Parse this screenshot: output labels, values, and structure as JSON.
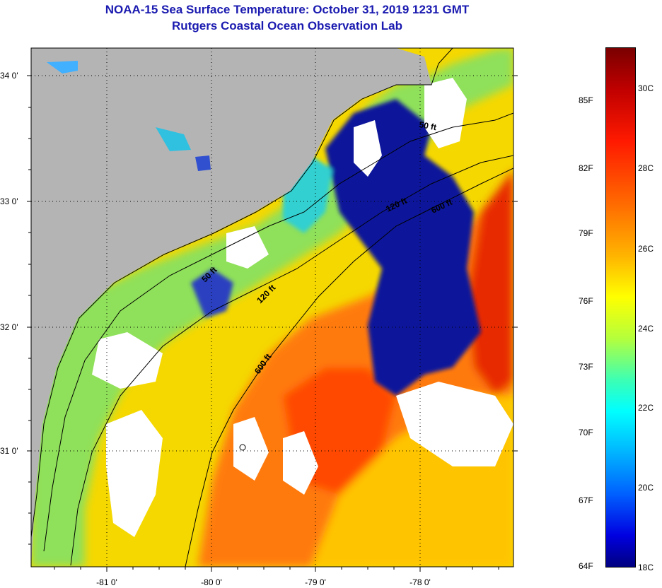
{
  "header": {
    "title": "NOAA-15 Sea Surface Temperature:  October 31, 2019 1231 GMT",
    "subtitle": "Rutgers Coastal Ocean Observation Lab"
  },
  "map": {
    "lat_ticks": [
      "34 0'",
      "33 0'",
      "32 0'",
      "31 0'"
    ],
    "lon_ticks": [
      "-81 0'",
      "-80 0'",
      "-79 0'",
      "-78 0'"
    ],
    "contours": [
      "50 ft",
      "120 ft",
      "600 ft",
      "50 ft",
      "120 ft",
      "600 ft"
    ],
    "colors": {
      "land": "#b4b4b4",
      "cloud": "#ffffff",
      "cold": "#000096",
      "warm": "#ff6400",
      "title": "#1a1ab0"
    }
  },
  "colorbar": {
    "fahrenheit": [
      "85F",
      "82F",
      "79F",
      "76F",
      "73F",
      "70F",
      "67F",
      "64F"
    ],
    "celsius": [
      "30C",
      "28C",
      "26C",
      "24C",
      "22C",
      "20C",
      "18C"
    ]
  }
}
